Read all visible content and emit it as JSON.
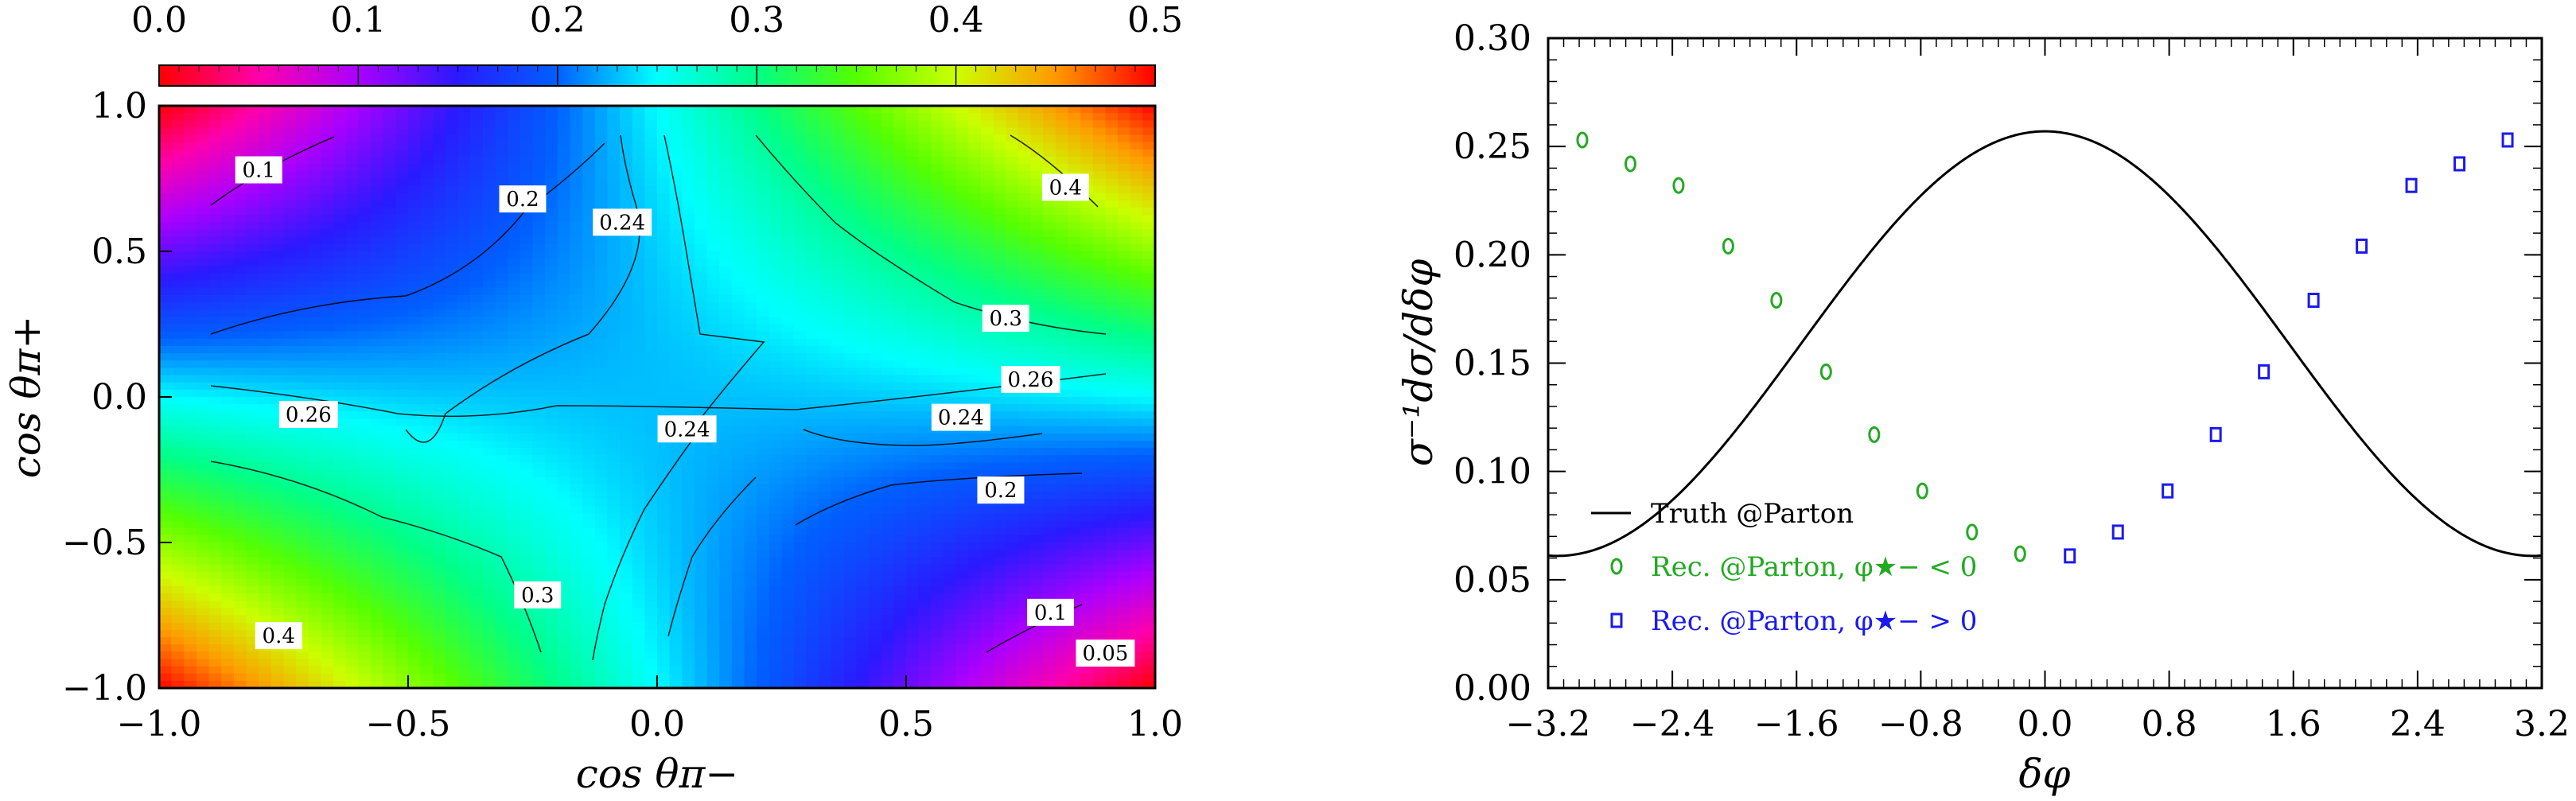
{
  "chart_data": [
    {
      "type": "heatmap",
      "xlabel": "cos θπ−",
      "ylabel": "cos θπ+",
      "xlim": [
        -1.0,
        1.0
      ],
      "ylim": [
        -1.0,
        1.0
      ],
      "xticks": [
        "−1.0",
        "−0.5",
        "0.0",
        "0.5",
        "1.0"
      ],
      "yticks": [
        "−1.0",
        "−0.5",
        "0.0",
        "0.5",
        "1.0"
      ],
      "colorbar": {
        "range": [
          0.0,
          0.5
        ],
        "ticks": [
          "0.0",
          "0.1",
          "0.2",
          "0.3",
          "0.4",
          "0.5"
        ],
        "position": "top"
      },
      "contour_labels": [
        {
          "text": "0.1",
          "x": -0.8,
          "y": 0.78
        },
        {
          "text": "0.2",
          "x": -0.27,
          "y": 0.68
        },
        {
          "text": "0.24",
          "x": -0.07,
          "y": 0.6
        },
        {
          "text": "0.4",
          "x": 0.82,
          "y": 0.72
        },
        {
          "text": "0.3",
          "x": 0.7,
          "y": 0.27
        },
        {
          "text": "0.26",
          "x": 0.75,
          "y": 0.06
        },
        {
          "text": "0.26",
          "x": -0.7,
          "y": -0.06
        },
        {
          "text": "0.24",
          "x": 0.06,
          "y": -0.11
        },
        {
          "text": "0.24",
          "x": 0.61,
          "y": -0.07
        },
        {
          "text": "0.2",
          "x": 0.69,
          "y": -0.32
        },
        {
          "text": "0.3",
          "x": -0.24,
          "y": -0.68
        },
        {
          "text": "0.4",
          "x": -0.76,
          "y": -0.82
        },
        {
          "text": "0.1",
          "x": 0.79,
          "y": -0.74
        },
        {
          "text": "0.05",
          "x": 0.9,
          "y": -0.88
        }
      ]
    },
    {
      "type": "line",
      "xlabel": "δφ",
      "ylabel": "σ⁻¹dσ/dδφ",
      "xlim": [
        -3.2,
        3.2
      ],
      "ylim": [
        0.0,
        0.3
      ],
      "xticks": [
        "−3.2",
        "−2.4",
        "−1.6",
        "−0.8",
        "0.0",
        "0.8",
        "1.6",
        "2.4",
        "3.2"
      ],
      "yticks": [
        "0.00",
        "0.05",
        "0.10",
        "0.15",
        "0.20",
        "0.25",
        "0.30"
      ],
      "legend_position": "bottom-left",
      "series": [
        {
          "name": "Truth @Parton",
          "kind": "line",
          "color": "#000000",
          "curve": {
            "form": "a + b*cos(x)",
            "a": 0.159,
            "b": 0.098
          }
        },
        {
          "name": "Rec. @Parton, φ★− < 0",
          "kind": "marker-circle",
          "color": "#22aa22",
          "x": [
            -2.98,
            -2.67,
            -2.36,
            -2.04,
            -1.73,
            -1.41,
            -1.1,
            -0.79,
            -0.47,
            -0.16
          ],
          "y": [
            0.253,
            0.242,
            0.232,
            0.204,
            0.179,
            0.146,
            0.117,
            0.091,
            0.072,
            0.062
          ]
        },
        {
          "name": "Rec. @Parton, φ★− > 0",
          "kind": "marker-square",
          "color": "#1a1aee",
          "x": [
            0.16,
            0.47,
            0.79,
            1.1,
            1.41,
            1.73,
            2.04,
            2.36,
            2.67,
            2.98
          ],
          "y": [
            0.061,
            0.072,
            0.091,
            0.117,
            0.146,
            0.179,
            0.204,
            0.232,
            0.242,
            0.253
          ]
        }
      ]
    }
  ]
}
